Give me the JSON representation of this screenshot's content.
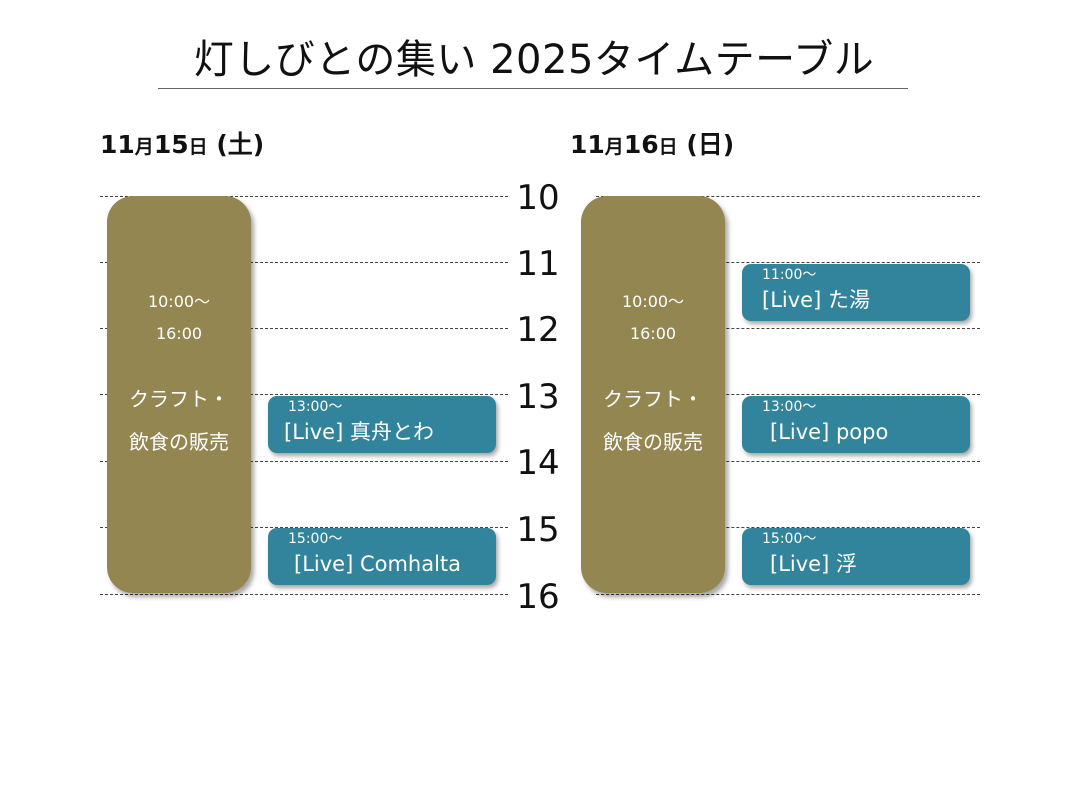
{
  "title": "灯しびとの集い 2025タイムテーブル",
  "days": [
    {
      "date_bold": "11",
      "date_small1": "月",
      "date_bold2": "15",
      "date_small2": "日",
      "dow": " (土)"
    },
    {
      "date_bold": "11",
      "date_small1": "月",
      "date_bold2": "16",
      "date_small2": "日",
      "dow": " (日)"
    }
  ],
  "hours": [
    "10",
    "11",
    "12",
    "13",
    "14",
    "15",
    "16"
  ],
  "sat": {
    "craft": {
      "time_start": "10:00〜",
      "time_end": "16:00",
      "name_line1": "クラフト・",
      "name_line2": "飲食の販売"
    },
    "live1": {
      "time": "13:00〜",
      "name": "[Live] 真舟とわ"
    },
    "live2": {
      "time": "15:00〜",
      "name": "[Live] Comhalta"
    }
  },
  "sun": {
    "craft": {
      "time_start": "10:00〜",
      "time_end": "16:00",
      "name_line1": "クラフト・",
      "name_line2": "飲食の販売"
    },
    "live1": {
      "time": "11:00〜",
      "name": "[Live] た湯"
    },
    "live2": {
      "time": "13:00〜",
      "name": "[Live] popo"
    },
    "live3": {
      "time": "15:00〜",
      "name": "[Live] 浮"
    }
  },
  "colors": {
    "craft": "#938650",
    "live": "#31849b"
  }
}
